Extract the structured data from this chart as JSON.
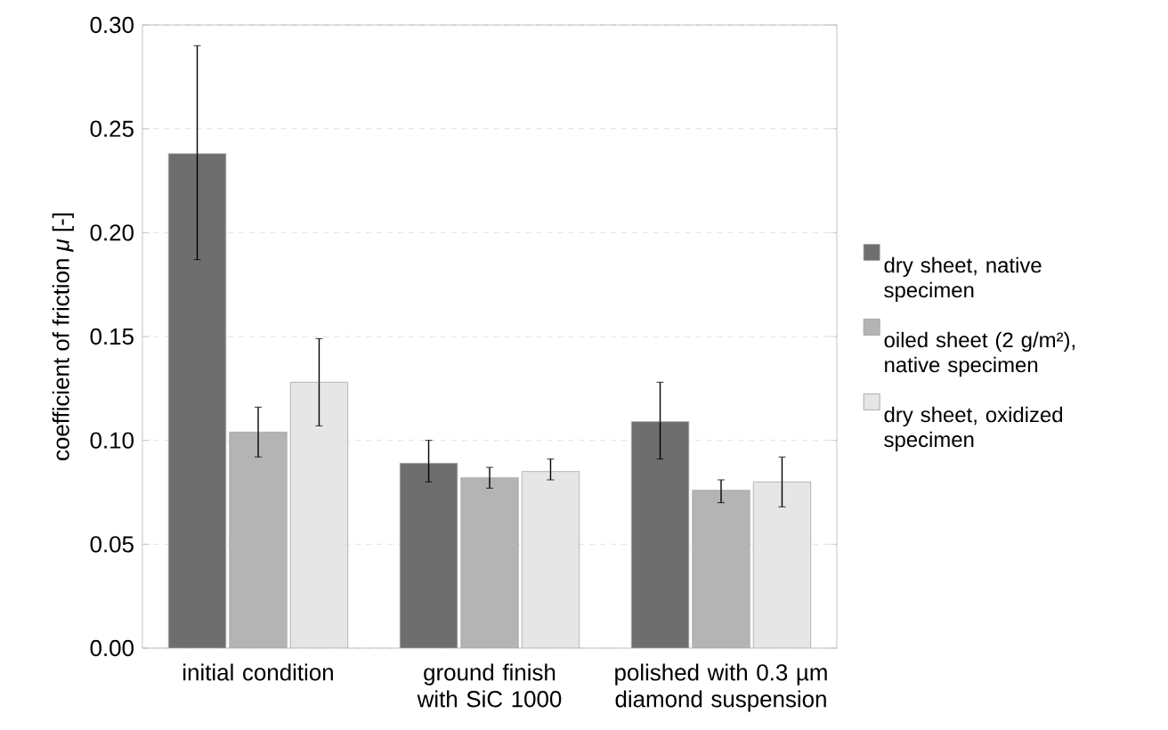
{
  "chart_data": {
    "type": "bar",
    "ylabel": "coefficient of friction *μ* [-]",
    "categories": [
      "initial condition",
      "ground finish with SiC 1000",
      "polished with 0.3 µm diamond suspension"
    ],
    "series": [
      {
        "name": "dry sheet, native specimen",
        "color": "#6e6e6e",
        "values": [
          0.238,
          0.089,
          0.109
        ],
        "errors": [
          [
            0.187,
            0.29
          ],
          [
            0.08,
            0.1
          ],
          [
            0.091,
            0.128
          ]
        ]
      },
      {
        "name": "oiled sheet (2 g/m²), native specimen",
        "color": "#b4b4b4",
        "values": [
          0.104,
          0.082,
          0.076
        ],
        "errors": [
          [
            0.092,
            0.116
          ],
          [
            0.077,
            0.087
          ],
          [
            0.07,
            0.081
          ]
        ]
      },
      {
        "name": "dry sheet, oxidized specimen",
        "color": "#e6e6e6",
        "values": [
          0.128,
          0.085,
          0.08
        ],
        "errors": [
          [
            0.107,
            0.149
          ],
          [
            0.081,
            0.091
          ],
          [
            0.068,
            0.092
          ]
        ]
      }
    ],
    "ylim": [
      0,
      0.3
    ],
    "yticks": [
      {
        "value": 0,
        "label": "0.00"
      },
      {
        "value": 0.05,
        "label": "0.05"
      },
      {
        "value": 0.1,
        "label": "0.10"
      },
      {
        "value": 0.15,
        "label": "0.15"
      },
      {
        "value": 0.2,
        "label": "0.20"
      },
      {
        "value": 0.25,
        "label": "0.25"
      },
      {
        "value": 0.3,
        "label": "0.30"
      }
    ],
    "grid": "y",
    "legend": "right"
  }
}
